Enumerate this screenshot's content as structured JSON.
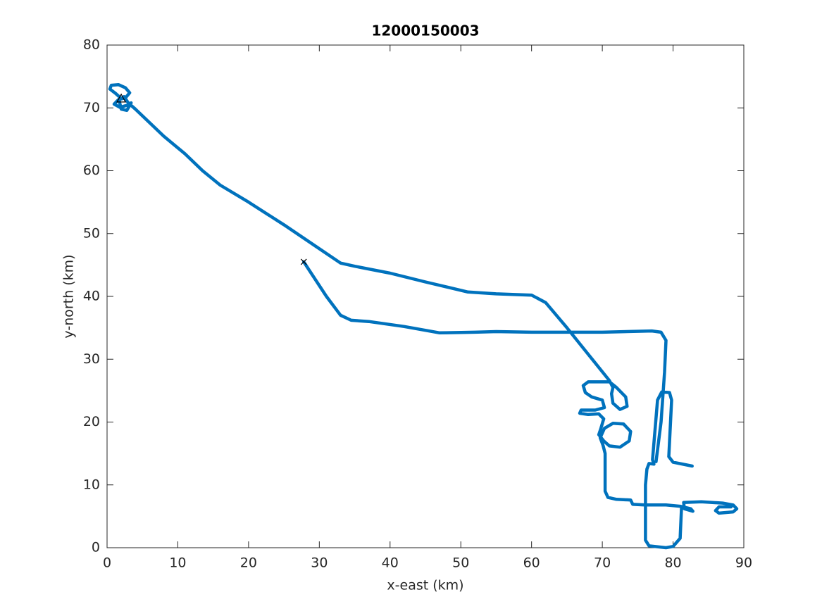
{
  "chart_data": {
    "type": "line",
    "title": "12000150003",
    "xlabel": "x-east (km)",
    "ylabel": "y-north (km)",
    "color": "#0072bd",
    "xlim": [
      0,
      90
    ],
    "ylim": [
      0,
      80
    ],
    "xticks": [
      0,
      10,
      20,
      30,
      40,
      50,
      60,
      70,
      80,
      90
    ],
    "yticks": [
      0,
      10,
      20,
      30,
      40,
      50,
      60,
      70,
      80
    ],
    "x": [
      2,
      1.2,
      0.4,
      0.6,
      1.6,
      2.6,
      3.2,
      2.6,
      1.6,
      1,
      1.8,
      2.8,
      3.4,
      2.8,
      2,
      1.7,
      2.4,
      3,
      4,
      8,
      11,
      13.5,
      16,
      20,
      25,
      30,
      33,
      35,
      40,
      45,
      51,
      55,
      60,
      62,
      65,
      68,
      71,
      71.5,
      71.3,
      71.5,
      72.5,
      73.5,
      73.3,
      72,
      71,
      68,
      67.3,
      67.6,
      68.5,
      70,
      70.3,
      69,
      67,
      66.8,
      68,
      69.5,
      70.2,
      69.8,
      69.5,
      70.2,
      71,
      72.5,
      73.8,
      74,
      73,
      71.5,
      70.3,
      69.7,
      70.1,
      70.4,
      70.4,
      70.4,
      70.8,
      72,
      74,
      74.3,
      76,
      79,
      81,
      82.5,
      82.8,
      81.6,
      81.5,
      84,
      87,
      88.5,
      89,
      88.5,
      86.5,
      86,
      86.5,
      88.2,
      null,
      82.7,
      80,
      79.4,
      79.8,
      79.5,
      78.4,
      77.8,
      77.1,
      77.3,
      76.6,
      76.3,
      76.1,
      76.1,
      76.6,
      79,
      80,
      81,
      81.2,
      null,
      27.8,
      31,
      33,
      34.5,
      37,
      42,
      47,
      52,
      55,
      60,
      70,
      77,
      78.3,
      79,
      78.8,
      78.3,
      77.6
    ],
    "y": [
      71.5,
      72.3,
      73,
      73.6,
      73.7,
      73.2,
      72.4,
      71.6,
      71.3,
      70.6,
      70.1,
      70.4,
      70.8,
      69.6,
      69.8,
      71.2,
      71.8,
      70.8,
      69.8,
      65.5,
      62.7,
      60,
      57.7,
      55,
      51.4,
      47.6,
      45.3,
      44.8,
      43.7,
      42.3,
      40.7,
      40.4,
      40.2,
      39,
      35,
      30.8,
      26.6,
      25.5,
      24.5,
      23,
      22,
      22.5,
      24,
      25.5,
      26.4,
      26.4,
      25.8,
      24.7,
      24,
      23.5,
      22.3,
      21.9,
      21.9,
      21.4,
      21.2,
      21.3,
      20.5,
      19,
      18,
      17,
      16.2,
      16,
      17,
      18.5,
      19.7,
      19.8,
      19,
      17.5,
      16.3,
      15,
      12,
      9,
      8,
      7.7,
      7.6,
      6.9,
      6.8,
      6.8,
      6.6,
      6.2,
      5.8,
      6.2,
      7.2,
      7.3,
      7.1,
      6.8,
      6.2,
      5.7,
      5.5,
      5.9,
      6.5,
      6.5,
      null,
      13,
      13.6,
      14.5,
      23.5,
      24.7,
      24.8,
      23.5,
      14,
      13.3,
      13.4,
      12.5,
      10,
      1.2,
      0.3,
      0,
      0.2,
      1.5,
      6.5,
      null,
      45.5,
      40,
      37,
      36.2,
      36,
      35.2,
      34.2,
      34.3,
      34.4,
      34.3,
      34.3,
      34.5,
      34.3,
      33,
      28,
      20,
      13.7
    ],
    "markers": [
      {
        "x": 2,
        "y": 71.5,
        "symbol": "triangle",
        "color": "#000000"
      },
      {
        "x": 27.8,
        "y": 45.5,
        "symbol": "cross",
        "color": "#000000"
      }
    ]
  }
}
